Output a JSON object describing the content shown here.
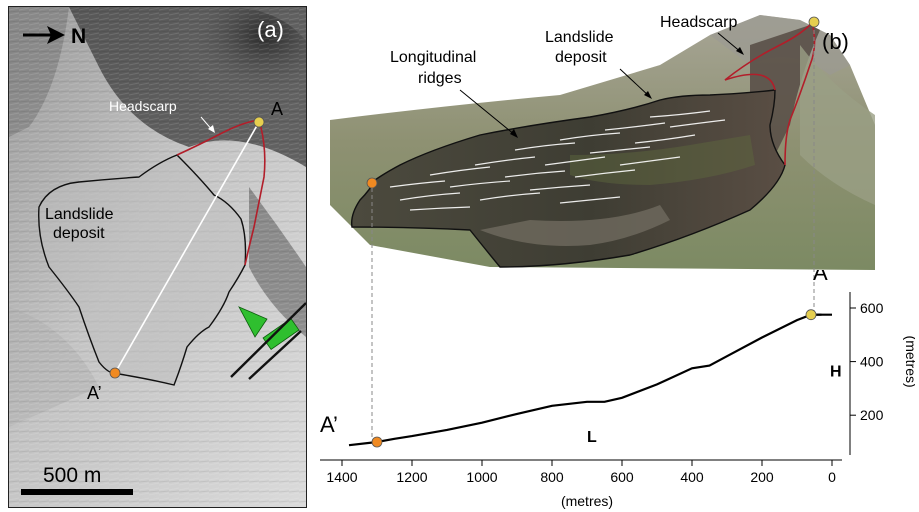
{
  "panel_a": {
    "panel_label": "(a)",
    "north_label": "N",
    "headscarp_label": "Headscarp",
    "deposit_label_line1": "Landslide",
    "deposit_label_line2": "deposit",
    "point_a_label": "A",
    "point_a_prime_label": "A’",
    "scale_label": "500 m"
  },
  "panel_b": {
    "panel_label": "(b)",
    "headscarp_label": "Headscarp",
    "deposit_label_line1": "Landslide",
    "deposit_label_line2": "deposit",
    "ridges_label_line1": "Longitudinal",
    "ridges_label_line2": "ridges"
  },
  "chart_data": {
    "type": "line",
    "x_axis_label": "(metres)",
    "y_axis_label": "(metres)",
    "x_ticks": [
      1400,
      1200,
      1000,
      800,
      600,
      400,
      200,
      0
    ],
    "y_ticks": [
      200,
      400,
      600
    ],
    "xlim": [
      1400,
      0
    ],
    "ylim": [
      80,
      650
    ],
    "length_label": "L",
    "height_label": "H",
    "point_a_label": "A",
    "point_a_prime_label": "A’",
    "profile_x": [
      1380,
      1300,
      1250,
      1200,
      1100,
      1000,
      900,
      800,
      700,
      650,
      600,
      500,
      400,
      350,
      300,
      200,
      100,
      60,
      30
    ],
    "profile_y": [
      88,
      100,
      112,
      122,
      145,
      172,
      205,
      235,
      250,
      250,
      265,
      315,
      375,
      385,
      420,
      490,
      555,
      575,
      575
    ],
    "point_a": {
      "x": 60,
      "y": 575
    },
    "point_a_prime": {
      "x": 1300,
      "y": 100
    }
  },
  "colors": {
    "headscarp_line": "#b21e2a",
    "point_a": "#e6cf4f",
    "point_a_prime": "#f08a22",
    "arrow_green": "#2fbf2f"
  }
}
